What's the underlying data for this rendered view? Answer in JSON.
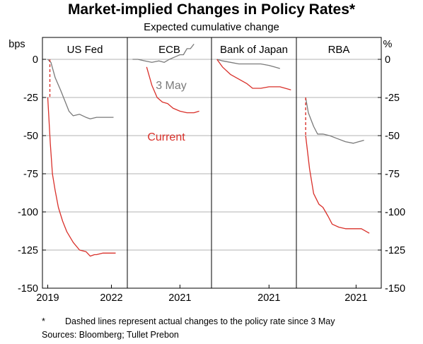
{
  "chart_data": {
    "type": "line",
    "title": "Market-implied Changes in Policy Rates*",
    "subtitle": "Expected cumulative change",
    "ylabel_left": "bps",
    "ylabel_right": "%",
    "ylim": [
      -150,
      0
    ],
    "yticks": [
      0,
      -25,
      -50,
      -75,
      -100,
      -125,
      -150
    ],
    "grid": true,
    "colors": {
      "current": "#d9302a",
      "may": "#7a7a7a",
      "grid": "#b3b3b3"
    },
    "annotations": {
      "may": "3 May",
      "current": "Current"
    },
    "footnote_marker": "*",
    "footnote": "Dashed lines represent actual changes to the policy rate since 3 May",
    "sources": "Sources:  Bloomberg; Tullet Prebon",
    "panels": [
      {
        "name": "US Fed",
        "xlim": [
          2018.75,
          2022.75
        ],
        "xticks": [
          2019,
          2022
        ],
        "xticklabels": [
          "2019",
          "2022"
        ],
        "series": [
          {
            "name": "3 May",
            "x": [
              2019.0,
              2019.15,
              2019.35,
              2019.6,
              2019.8,
              2020.0,
              2020.2,
              2020.5,
              2020.8,
              2021.0,
              2021.3,
              2021.6,
              2021.8,
              2022.1
            ],
            "y": [
              0,
              -2,
              -12,
              -20,
              -27,
              -34,
              -37,
              -36,
              -38,
              -39,
              -38,
              -38,
              -38,
              -38
            ]
          },
          {
            "name": "Current",
            "x": [
              2019.0,
              2019.12,
              2019.22,
              2019.35,
              2019.5,
              2019.7,
              2019.9,
              2020.2,
              2020.5,
              2020.8,
              2021.0,
              2021.2,
              2021.3,
              2021.6,
              2021.9,
              2022.2
            ],
            "y": [
              -25,
              -55,
              -75,
              -86,
              -97,
              -106,
              -113,
              -120,
              -125,
              -126,
              -129,
              -128,
              -128,
              -127,
              -127,
              -127
            ]
          }
        ],
        "actual_change": {
          "x": 2019.1,
          "y": [
            0,
            -25
          ]
        }
      },
      {
        "name": "ECB",
        "xlim": [
          2019.5,
          2021.9
        ],
        "xticks": [
          2021
        ],
        "xticklabels": [
          "2021"
        ],
        "series": [
          {
            "name": "3 May",
            "x": [
              2019.65,
              2019.8,
              2020.0,
              2020.2,
              2020.4,
              2020.55,
              2020.7,
              2020.8,
              2020.9,
              2021.0,
              2021.1,
              2021.2,
              2021.3,
              2021.4
            ],
            "y": [
              0,
              0,
              -1,
              -2,
              -1,
              -2,
              0,
              1,
              2,
              3,
              3,
              7,
              7,
              10
            ]
          },
          {
            "name": "Current",
            "x": [
              2020.05,
              2020.2,
              2020.35,
              2020.5,
              2020.65,
              2020.8,
              2021.0,
              2021.2,
              2021.4,
              2021.55
            ],
            "y": [
              -5,
              -17,
              -25,
              -28,
              -29,
              -32,
              -34,
              -35,
              -35,
              -34
            ]
          }
        ]
      },
      {
        "name": "Bank of Japan",
        "xlim": [
          2018.9,
          2022.0
        ],
        "xticks": [
          2021
        ],
        "xticklabels": [
          "2021"
        ],
        "series": [
          {
            "name": "3 May",
            "x": [
              2019.1,
              2019.3,
              2019.6,
              2019.9,
              2020.3,
              2020.7,
              2021.0,
              2021.2,
              2021.4
            ],
            "y": [
              0,
              -1,
              -2,
              -3,
              -3,
              -3,
              -4,
              -5,
              -6
            ]
          },
          {
            "name": "Current",
            "x": [
              2019.1,
              2019.3,
              2019.6,
              2019.9,
              2020.2,
              2020.4,
              2020.7,
              2021.0,
              2021.4,
              2021.8
            ],
            "y": [
              0,
              -5,
              -10,
              -13,
              -16,
              -19,
              -19,
              -18,
              -18,
              -20
            ]
          }
        ]
      },
      {
        "name": "RBA",
        "xlim": [
          2018.75,
          2021.95
        ],
        "xticks": [
          2021
        ],
        "xticklabels": [
          "2021"
        ],
        "series": [
          {
            "name": "3 May",
            "x": [
              2019.1,
              2019.2,
              2019.4,
              2019.55,
              2019.75,
              2020.0,
              2020.3,
              2020.6,
              2020.9,
              2021.3
            ],
            "y": [
              -25,
              -35,
              -44,
              -49,
              -49,
              -50,
              -52,
              -54,
              -55,
              -53
            ]
          },
          {
            "name": "Current",
            "x": [
              2019.1,
              2019.25,
              2019.4,
              2019.6,
              2019.75,
              2019.95,
              2020.1,
              2020.35,
              2020.6,
              2020.9,
              2021.2,
              2021.5
            ],
            "y": [
              -50,
              -72,
              -88,
              -95,
              -97,
              -103,
              -108,
              -110,
              -111,
              -111,
              -111,
              -114
            ]
          }
        ],
        "actual_change": {
          "x": 2019.1,
          "y": [
            -25,
            -50
          ]
        }
      }
    ]
  }
}
